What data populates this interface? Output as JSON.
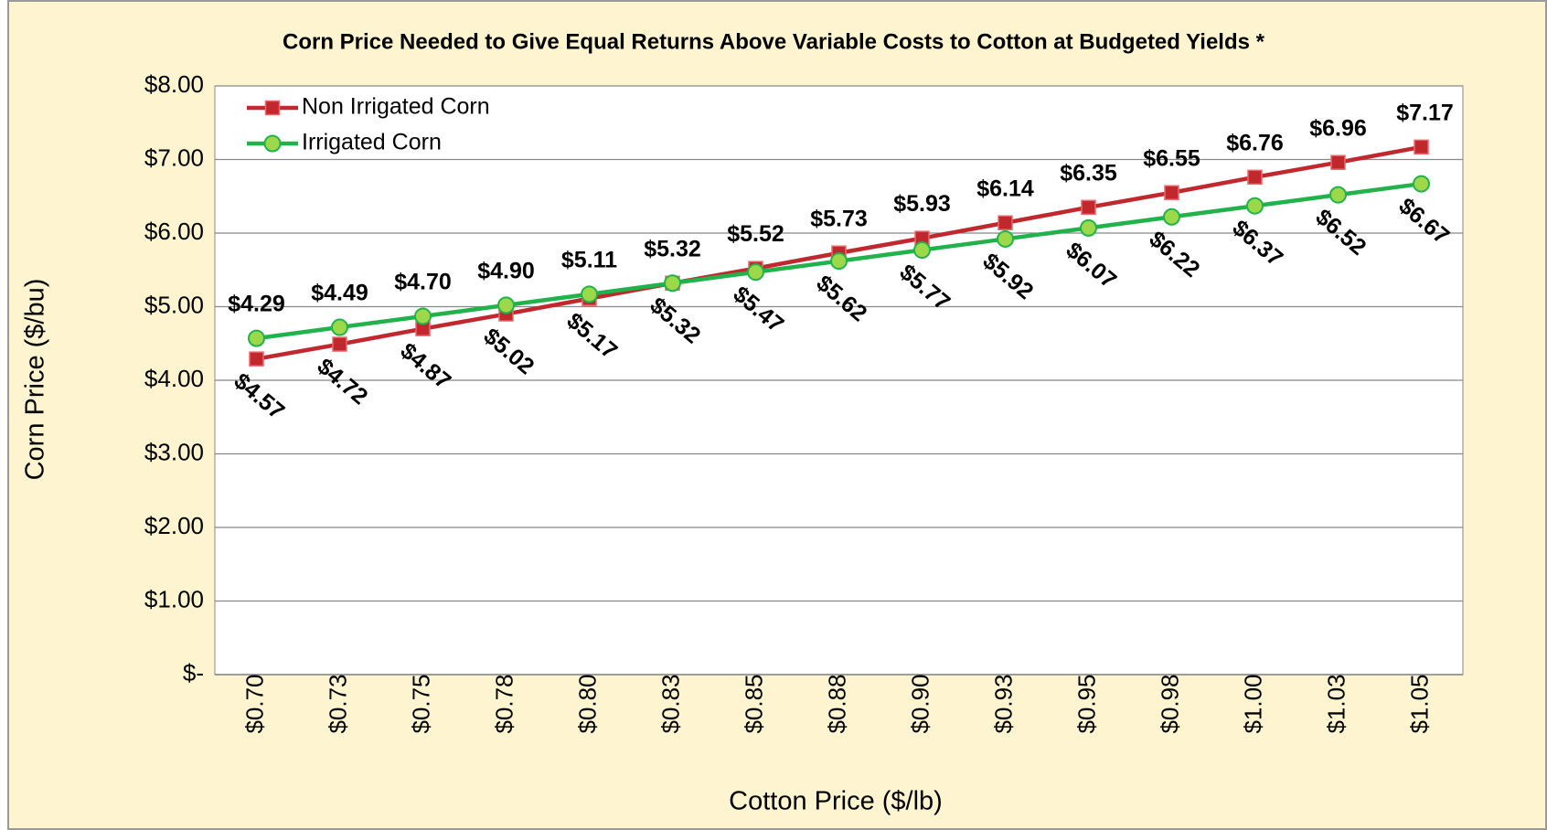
{
  "chart_data": {
    "type": "line",
    "title": "Corn Price Needed to Give Equal Returns Above Variable Costs to Cotton at Budgeted Yields *",
    "x_label": "Cotton Price ($/lb)",
    "y_label": "Corn Price ($/bu)",
    "categories": [
      "$0.70",
      "$0.73",
      "$0.75",
      "$0.78",
      "$0.80",
      "$0.83",
      "$0.85",
      "$0.88",
      "$0.90",
      "$0.93",
      "$0.95",
      "$0.98",
      "$1.00",
      "$1.03",
      "$1.05"
    ],
    "series": [
      {
        "name": "Non Irrigated Corn",
        "color": "#c0282d",
        "marker": "square",
        "values": [
          4.29,
          4.49,
          4.7,
          4.9,
          5.11,
          5.32,
          5.52,
          5.73,
          5.93,
          6.14,
          6.35,
          6.55,
          6.76,
          6.96,
          7.17
        ],
        "value_labels": [
          "$4.29",
          "$4.49",
          "$4.70",
          "$4.90",
          "$5.11",
          "$5.32",
          "$5.52",
          "$5.73",
          "$5.93",
          "$6.14",
          "$6.35",
          "$6.55",
          "$6.76",
          "$6.96",
          "$7.17"
        ]
      },
      {
        "name": "Irrigated Corn",
        "color": "#22b24c",
        "marker": "circle",
        "values": [
          4.57,
          4.72,
          4.87,
          5.02,
          5.17,
          5.32,
          5.47,
          5.62,
          5.77,
          5.92,
          6.07,
          6.22,
          6.37,
          6.52,
          6.67
        ],
        "value_labels": [
          "$4.57",
          "$4.72",
          "$4.87",
          "$5.02",
          "$5.17",
          "$5.32",
          "$5.47",
          "$5.62",
          "$5.77",
          "$5.92",
          "$6.07",
          "$6.22",
          "$6.37",
          "$6.52",
          "$6.67"
        ]
      }
    ],
    "ylim": [
      0,
      8
    ],
    "yticks": [
      {
        "value": 0,
        "label": "$-"
      },
      {
        "value": 1,
        "label": "$1.00"
      },
      {
        "value": 2,
        "label": "$2.00"
      },
      {
        "value": 3,
        "label": "$3.00"
      },
      {
        "value": 4,
        "label": "$4.00"
      },
      {
        "value": 5,
        "label": "$5.00"
      },
      {
        "value": 6,
        "label": "$6.00"
      },
      {
        "value": 7,
        "label": "$7.00"
      },
      {
        "value": 8,
        "label": "$8.00"
      }
    ],
    "grid": true,
    "legend": "top-left"
  }
}
